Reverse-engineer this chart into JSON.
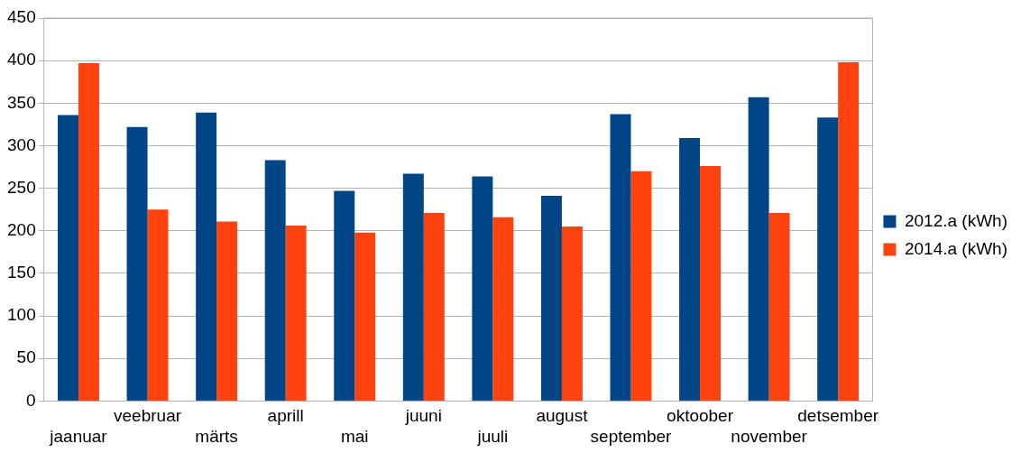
{
  "chart_data": {
    "type": "bar",
    "categories": [
      "jaanuar",
      "veebruar",
      "märts",
      "aprill",
      "mai",
      "juuni",
      "juuli",
      "august",
      "september",
      "oktoober",
      "november",
      "detsember"
    ],
    "series": [
      {
        "name": "2012.a (kWh)",
        "color": "#004586",
        "values": [
          336,
          322,
          339,
          283,
          247,
          267,
          264,
          241,
          337,
          309,
          357,
          333
        ]
      },
      {
        "name": "2014.a (kWh)",
        "color": "#ff420e",
        "values": [
          397,
          225,
          211,
          206,
          198,
          221,
          216,
          205,
          270,
          276,
          221,
          398
        ]
      }
    ],
    "ylim": [
      0,
      450
    ],
    "yticks": [
      0,
      50,
      100,
      150,
      200,
      250,
      300,
      350,
      400,
      450
    ],
    "grid": "y",
    "legend": "right"
  }
}
